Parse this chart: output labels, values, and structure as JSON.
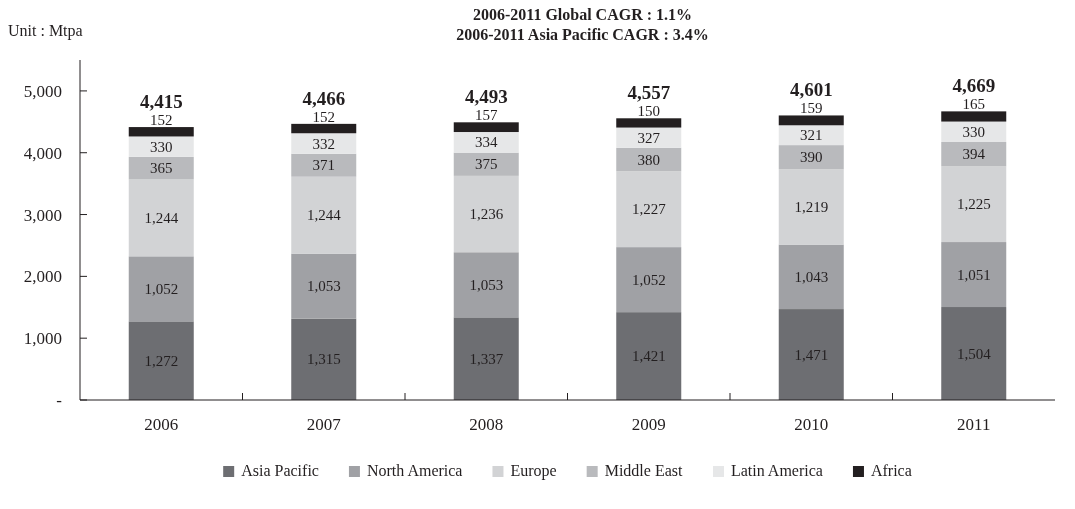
{
  "chart_data": {
    "type": "bar",
    "stacked": true,
    "title": "2006-2011 Global CAGR : 1.1%",
    "subtitle": "2006-2011 Asia Pacific CAGR : 3.4%",
    "ylabel": "Unit : Mtpa",
    "categories": [
      "2006",
      "2007",
      "2008",
      "2009",
      "2010",
      "2011"
    ],
    "series": [
      {
        "name": "Asia Pacific",
        "color": "#6d6e72",
        "values": [
          1272,
          1315,
          1337,
          1421,
          1471,
          1504
        ],
        "value_labels": [
          "1,272",
          "1,315",
          "1,337",
          "1,421",
          "1,471",
          "1,504"
        ]
      },
      {
        "name": "North America",
        "color": "#a0a1a5",
        "values": [
          1052,
          1053,
          1053,
          1052,
          1043,
          1051
        ],
        "value_labels": [
          "1,052",
          "1,053",
          "1,053",
          "1,052",
          "1,043",
          "1,051"
        ]
      },
      {
        "name": "Europe",
        "color": "#d2d3d5",
        "values": [
          1244,
          1244,
          1236,
          1227,
          1219,
          1225
        ],
        "value_labels": [
          "1,244",
          "1,244",
          "1,236",
          "1,227",
          "1,219",
          "1,225"
        ]
      },
      {
        "name": "Middle East",
        "color": "#b9babd",
        "values": [
          365,
          371,
          375,
          380,
          390,
          394
        ],
        "value_labels": [
          "365",
          "371",
          "375",
          "380",
          "390",
          "394"
        ]
      },
      {
        "name": "Latin America",
        "color": "#e6e7e8",
        "values": [
          330,
          332,
          334,
          327,
          321,
          330
        ],
        "value_labels": [
          "330",
          "332",
          "334",
          "327",
          "321",
          "330"
        ]
      },
      {
        "name": "Africa",
        "color": "#231f20",
        "values": [
          152,
          152,
          157,
          150,
          159,
          165
        ],
        "value_labels": [
          "152",
          "152",
          "157",
          "150",
          "159",
          "165"
        ]
      }
    ],
    "totals": [
      "4,415",
      "4,466",
      "4,493",
      "4,557",
      "4,601",
      "4,669"
    ],
    "ylim": [
      0,
      5500
    ],
    "yticks": [
      {
        "value": 0,
        "label": "-"
      },
      {
        "value": 1000,
        "label": "1,000"
      },
      {
        "value": 2000,
        "label": "2,000"
      },
      {
        "value": 3000,
        "label": "3,000"
      },
      {
        "value": 4000,
        "label": "4,000"
      },
      {
        "value": 5000,
        "label": "5,000"
      }
    ],
    "legend": "bottom"
  }
}
